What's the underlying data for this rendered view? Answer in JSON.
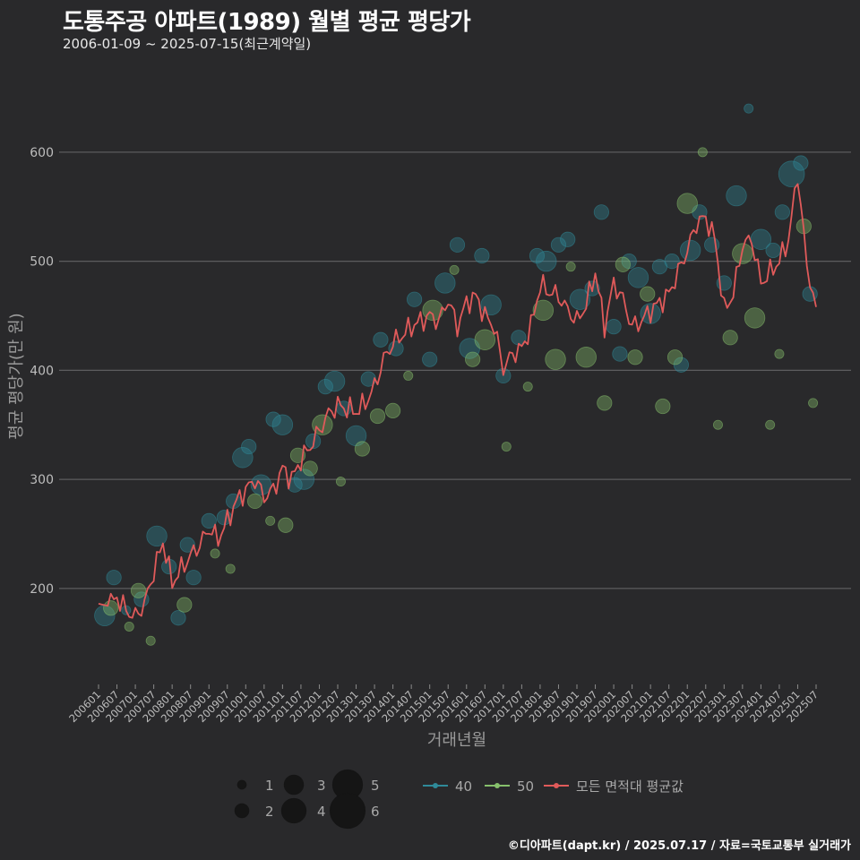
{
  "header": {
    "title": "도통주공 아파트(1989) 월별 평균 평당가",
    "subtitle": "2006-01-09 ~ 2025-07-15(최근계약일)"
  },
  "footer": {
    "credit": "©디아파트(dapt.kr) / 2025.07.17 / 자료=국토교통부 실거래가"
  },
  "colors": {
    "background": "#29292b",
    "grid": "#5c5c5e",
    "area40": "#2f8a99",
    "area50": "#86c06c",
    "avg_line": "#e05a5a"
  },
  "chart_data": {
    "type": "line",
    "xlabel": "거래년월",
    "ylabel": "평균 평당가(만 원)",
    "ylim": [
      112,
      682
    ],
    "yticks": [
      200,
      300,
      400,
      500,
      600
    ],
    "xticks": [
      "200601",
      "200607",
      "200701",
      "200707",
      "200801",
      "200807",
      "200901",
      "200907",
      "201001",
      "201007",
      "201101",
      "201107",
      "201201",
      "201207",
      "201301",
      "201307",
      "201401",
      "201407",
      "201501",
      "201507",
      "201601",
      "201607",
      "201701",
      "201707",
      "201801",
      "201807",
      "201901",
      "201907",
      "202001",
      "202007",
      "202101",
      "202107",
      "202201",
      "202207",
      "202301",
      "202307",
      "202401",
      "202407",
      "202501",
      "202507"
    ],
    "grid": "horizontal",
    "legend_position": "bottom",
    "legend": {
      "size_labels": [
        "1",
        "2",
        "3",
        "4",
        "5",
        "6"
      ],
      "series_labels": [
        "40",
        "50",
        "모든 면적대 평균값"
      ]
    },
    "avg_series": {
      "name": "모든 면적대 평균값",
      "anchors": [
        [
          "2006-01",
          186
        ],
        [
          "2006-04",
          184
        ],
        [
          "2006-07",
          192
        ],
        [
          "2006-10",
          180
        ],
        [
          "2007-01",
          174
        ],
        [
          "2007-04",
          186
        ],
        [
          "2007-07",
          215
        ],
        [
          "2007-10",
          243
        ],
        [
          "2008-01",
          205
        ],
        [
          "2008-04",
          218
        ],
        [
          "2008-07",
          230
        ],
        [
          "2008-10",
          240
        ],
        [
          "2009-01",
          255
        ],
        [
          "2009-04",
          245
        ],
        [
          "2009-07",
          262
        ],
        [
          "2009-10",
          280
        ],
        [
          "2010-01",
          290
        ],
        [
          "2010-04",
          300
        ],
        [
          "2010-07",
          284
        ],
        [
          "2010-10",
          290
        ],
        [
          "2011-01",
          310
        ],
        [
          "2011-04",
          300
        ],
        [
          "2011-07",
          318
        ],
        [
          "2011-10",
          330
        ],
        [
          "2012-01",
          345
        ],
        [
          "2012-04",
          360
        ],
        [
          "2012-07",
          368
        ],
        [
          "2012-10",
          365
        ],
        [
          "2013-01",
          362
        ],
        [
          "2013-04",
          370
        ],
        [
          "2013-07",
          385
        ],
        [
          "2013-10",
          410
        ],
        [
          "2014-01",
          425
        ],
        [
          "2014-04",
          432
        ],
        [
          "2014-07",
          440
        ],
        [
          "2014-10",
          445
        ],
        [
          "2015-01",
          450
        ],
        [
          "2015-04",
          445
        ],
        [
          "2015-07",
          465
        ],
        [
          "2015-10",
          440
        ],
        [
          "2016-01",
          462
        ],
        [
          "2016-04",
          468
        ],
        [
          "2016-07",
          450
        ],
        [
          "2016-10",
          440
        ],
        [
          "2017-01",
          402
        ],
        [
          "2017-04",
          415
        ],
        [
          "2017-07",
          420
        ],
        [
          "2017-10",
          440
        ],
        [
          "2018-01",
          478
        ],
        [
          "2018-04",
          472
        ],
        [
          "2018-07",
          468
        ],
        [
          "2018-10",
          455
        ],
        [
          "2019-01",
          445
        ],
        [
          "2019-04",
          460
        ],
        [
          "2019-07",
          490
        ],
        [
          "2019-10",
          440
        ],
        [
          "2020-01",
          480
        ],
        [
          "2020-04",
          465
        ],
        [
          "2020-07",
          440
        ],
        [
          "2020-10",
          445
        ],
        [
          "2021-01",
          455
        ],
        [
          "2021-04",
          462
        ],
        [
          "2021-07",
          470
        ],
        [
          "2021-10",
          490
        ],
        [
          "2022-01",
          510
        ],
        [
          "2022-04",
          535
        ],
        [
          "2022-07",
          540
        ],
        [
          "2022-10",
          520
        ],
        [
          "2023-01",
          455
        ],
        [
          "2023-04",
          470
        ],
        [
          "2023-07",
          515
        ],
        [
          "2023-10",
          520
        ],
        [
          "2024-01",
          480
        ],
        [
          "2024-04",
          490
        ],
        [
          "2024-07",
          500
        ],
        [
          "2024-10",
          520
        ],
        [
          "2025-01",
          580
        ],
        [
          "2025-04",
          495
        ],
        [
          "2025-07",
          458
        ]
      ]
    },
    "scatter_series": [
      {
        "name": "40",
        "points": [
          [
            "2006-03",
            175,
            3
          ],
          [
            "2006-06",
            210,
            2
          ],
          [
            "2006-10",
            180,
            1
          ],
          [
            "2007-03",
            190,
            2
          ],
          [
            "2007-08",
            248,
            3
          ],
          [
            "2007-12",
            220,
            2
          ],
          [
            "2008-03",
            173,
            2
          ],
          [
            "2008-06",
            240,
            2
          ],
          [
            "2008-08",
            210,
            2
          ],
          [
            "2009-01",
            262,
            2
          ],
          [
            "2009-06",
            265,
            2
          ],
          [
            "2009-09",
            280,
            2
          ],
          [
            "2009-12",
            320,
            3
          ],
          [
            "2010-02",
            330,
            2
          ],
          [
            "2010-06",
            295,
            3
          ],
          [
            "2010-10",
            355,
            2
          ],
          [
            "2011-01",
            350,
            3
          ],
          [
            "2011-05",
            295,
            2
          ],
          [
            "2011-08",
            300,
            3
          ],
          [
            "2011-11",
            335,
            2
          ],
          [
            "2012-03",
            385,
            2
          ],
          [
            "2012-06",
            390,
            3
          ],
          [
            "2012-09",
            365,
            2
          ],
          [
            "2013-01",
            340,
            3
          ],
          [
            "2013-05",
            392,
            2
          ],
          [
            "2013-09",
            428,
            2
          ],
          [
            "2014-02",
            420,
            2
          ],
          [
            "2014-08",
            465,
            2
          ],
          [
            "2015-01",
            410,
            2
          ],
          [
            "2015-06",
            480,
            3
          ],
          [
            "2015-10",
            515,
            2
          ],
          [
            "2016-02",
            420,
            3
          ],
          [
            "2016-06",
            505,
            2
          ],
          [
            "2016-09",
            460,
            3
          ],
          [
            "2017-01",
            395,
            2
          ],
          [
            "2017-06",
            430,
            2
          ],
          [
            "2017-12",
            505,
            2
          ],
          [
            "2018-03",
            500,
            3
          ],
          [
            "2018-07",
            515,
            2
          ],
          [
            "2018-10",
            520,
            2
          ],
          [
            "2019-02",
            465,
            3
          ],
          [
            "2019-06",
            475,
            2
          ],
          [
            "2019-09",
            545,
            2
          ],
          [
            "2020-01",
            440,
            2
          ],
          [
            "2020-03",
            415,
            2
          ],
          [
            "2020-06",
            500,
            2
          ],
          [
            "2020-09",
            485,
            3
          ],
          [
            "2021-01",
            452,
            3
          ],
          [
            "2021-04",
            495,
            2
          ],
          [
            "2021-08",
            500,
            2
          ],
          [
            "2021-11",
            405,
            2
          ],
          [
            "2022-02",
            510,
            3
          ],
          [
            "2022-05",
            545,
            2
          ],
          [
            "2022-09",
            515,
            2
          ],
          [
            "2023-01",
            480,
            2
          ],
          [
            "2023-05",
            560,
            3
          ],
          [
            "2023-09",
            640,
            1
          ],
          [
            "2024-01",
            520,
            3
          ],
          [
            "2024-05",
            510,
            2
          ],
          [
            "2024-08",
            545,
            2
          ],
          [
            "2024-11",
            580,
            4
          ],
          [
            "2025-02",
            590,
            2
          ],
          [
            "2025-05",
            470,
            2
          ]
        ]
      },
      {
        "name": "50",
        "points": [
          [
            "2006-05",
            182,
            2
          ],
          [
            "2006-11",
            165,
            1
          ],
          [
            "2007-02",
            198,
            2
          ],
          [
            "2007-06",
            152,
            1
          ],
          [
            "2008-05",
            185,
            2
          ],
          [
            "2009-03",
            232,
            1
          ],
          [
            "2009-08",
            218,
            1
          ],
          [
            "2010-04",
            280,
            2
          ],
          [
            "2010-09",
            262,
            1
          ],
          [
            "2011-02",
            258,
            2
          ],
          [
            "2011-06",
            322,
            2
          ],
          [
            "2011-10",
            310,
            2
          ],
          [
            "2012-02",
            350,
            3
          ],
          [
            "2012-08",
            298,
            1
          ],
          [
            "2013-03",
            328,
            2
          ],
          [
            "2013-08",
            358,
            2
          ],
          [
            "2014-01",
            363,
            2
          ],
          [
            "2014-06",
            395,
            1
          ],
          [
            "2015-02",
            455,
            3
          ],
          [
            "2015-09",
            492,
            1
          ],
          [
            "2016-03",
            410,
            2
          ],
          [
            "2016-07",
            428,
            3
          ],
          [
            "2017-02",
            330,
            1
          ],
          [
            "2017-09",
            385,
            1
          ],
          [
            "2018-02",
            455,
            3
          ],
          [
            "2018-06",
            410,
            3
          ],
          [
            "2018-11",
            495,
            1
          ],
          [
            "2019-04",
            412,
            3
          ],
          [
            "2019-10",
            370,
            2
          ],
          [
            "2020-04",
            497,
            2
          ],
          [
            "2020-08",
            412,
            2
          ],
          [
            "2020-12",
            470,
            2
          ],
          [
            "2021-05",
            367,
            2
          ],
          [
            "2021-09",
            412,
            2
          ],
          [
            "2022-01",
            553,
            3
          ],
          [
            "2022-06",
            600,
            1
          ],
          [
            "2022-11",
            350,
            1
          ],
          [
            "2023-03",
            430,
            2
          ],
          [
            "2023-07",
            507,
            3
          ],
          [
            "2023-11",
            448,
            3
          ],
          [
            "2024-04",
            350,
            1
          ],
          [
            "2024-07",
            415,
            1
          ],
          [
            "2025-03",
            532,
            2
          ],
          [
            "2025-06",
            370,
            1
          ]
        ]
      }
    ]
  }
}
